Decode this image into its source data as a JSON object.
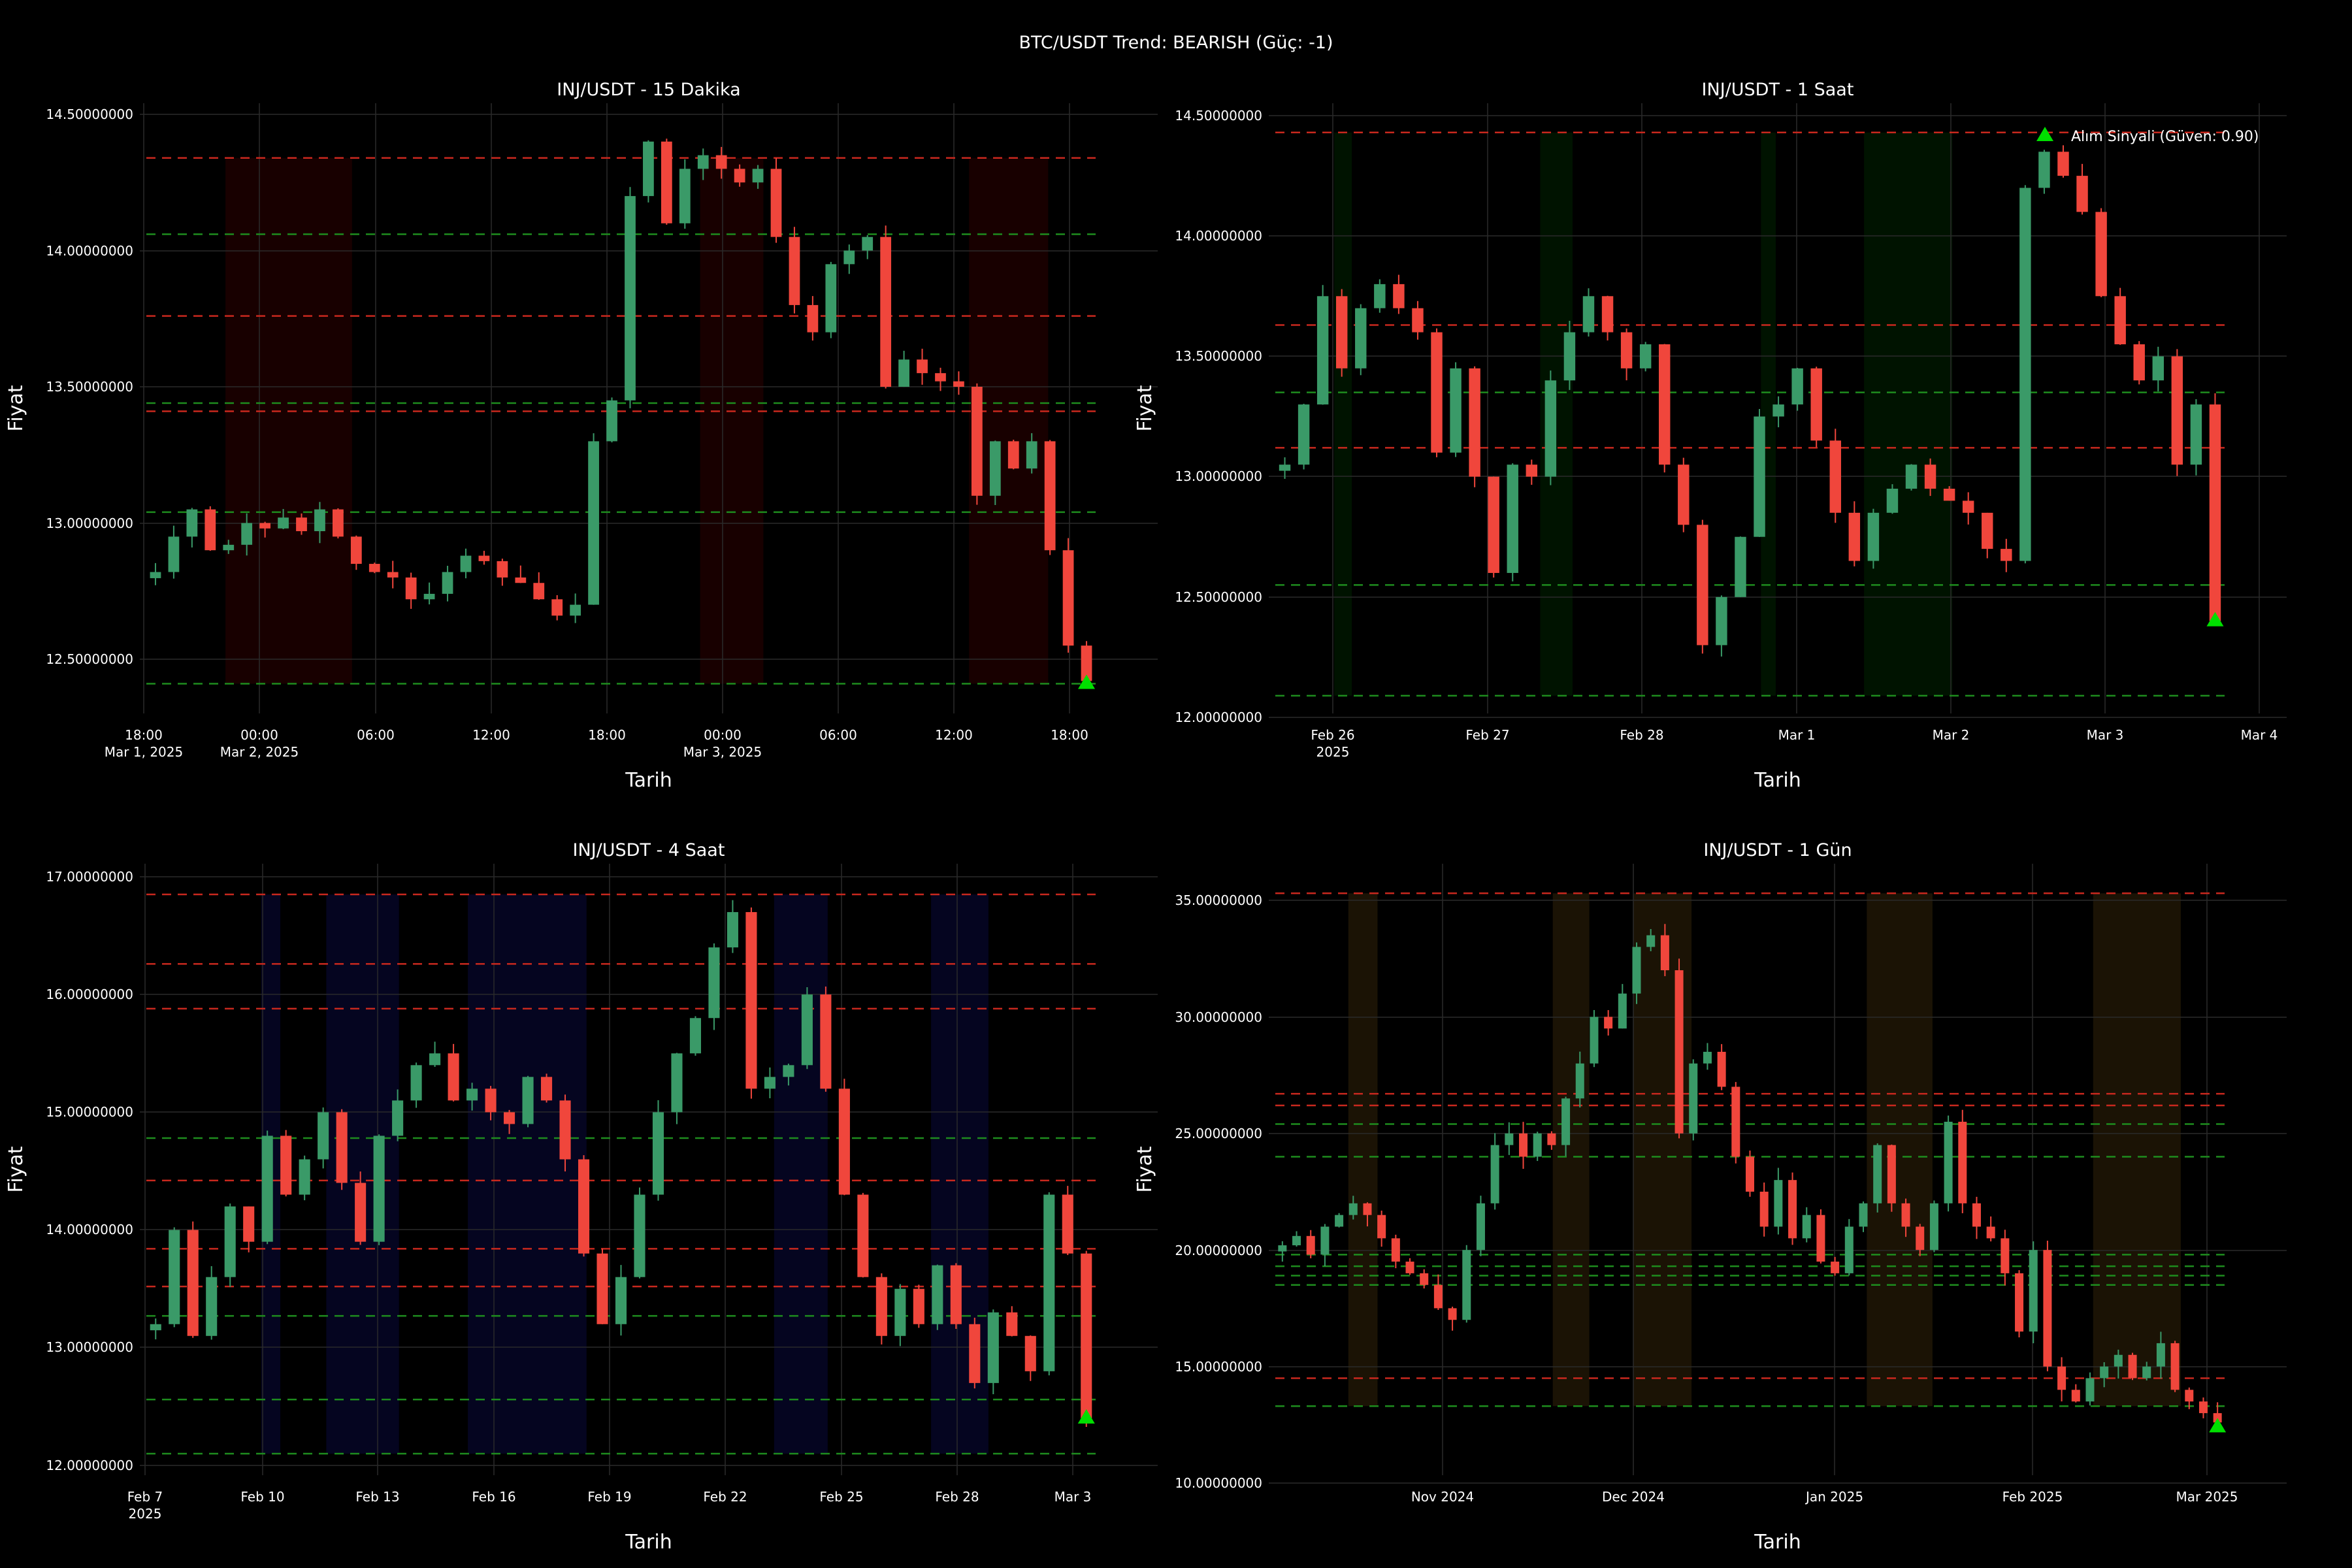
{
  "suptitle": "BTC/USDT Trend: BEARISH (Güç: -1)",
  "colors": {
    "background": "#000000",
    "grid": "#2a2a2a",
    "candle_up": "#3a9a68",
    "candle_down": "#f0463c",
    "resistance_line": "#c8281e",
    "support_line": "#1e8c1e",
    "buy_marker": "#00e000"
  },
  "chart_data": [
    {
      "type": "candlestick",
      "title": "INJ/USDT - 15 Dakika",
      "xlabel": "Tarih",
      "ylabel": "Fiyat",
      "ylim": [
        12.3,
        14.55
      ],
      "yticks": [
        "12.50000000",
        "13.00000000",
        "13.50000000",
        "14.00000000",
        "14.50000000"
      ],
      "xlim_hours": [
        -0.3,
        25.0
      ],
      "xticks": [
        {
          "label": "18:00",
          "sub": "Mar 1, 2025"
        },
        {
          "label": "00:00",
          "sub": "Mar 2, 2025"
        },
        {
          "label": "06:00",
          "sub": ""
        },
        {
          "label": "12:00",
          "sub": ""
        },
        {
          "label": "18:00",
          "sub": ""
        },
        {
          "label": "00:00",
          "sub": "Mar 3, 2025"
        },
        {
          "label": "06:00",
          "sub": ""
        },
        {
          "label": "12:00",
          "sub": ""
        },
        {
          "label": "18:00",
          "sub": ""
        }
      ],
      "grid": true,
      "closes": [
        12.82,
        12.95,
        13.05,
        12.9,
        12.92,
        13.0,
        12.98,
        13.02,
        12.97,
        13.05,
        12.95,
        12.85,
        12.82,
        12.8,
        12.72,
        12.74,
        12.82,
        12.88,
        12.86,
        12.8,
        12.78,
        12.72,
        12.66,
        12.7,
        13.3,
        13.45,
        14.2,
        14.4,
        14.1,
        14.3,
        14.35,
        14.3,
        14.25,
        14.3,
        14.05,
        13.8,
        13.7,
        13.95,
        14.0,
        14.05,
        13.5,
        13.6,
        13.55,
        13.52,
        13.5,
        13.1,
        13.3,
        13.2,
        13.3,
        12.9,
        12.55,
        12.42
      ],
      "resistance_levels": [
        14.34,
        13.76,
        13.41
      ],
      "support_levels": [
        14.06,
        13.44,
        13.04,
        12.41
      ],
      "highlight_zones": [
        [
          2.0,
          5.2
        ],
        [
          14.0,
          15.6
        ],
        [
          20.8,
          22.8
        ]
      ],
      "highlight_color": "rgba(110,0,0,0.22)",
      "signals": [
        {
          "type": "buy",
          "x_index": 51,
          "price": 12.41
        }
      ],
      "legend": null
    },
    {
      "type": "candlestick",
      "title": "INJ/USDT - 1 Saat",
      "xlabel": "Tarih",
      "ylabel": "Fiyat",
      "ylim": [
        12.0,
        14.55
      ],
      "yticks": [
        "12.00000000",
        "12.50000000",
        "13.00000000",
        "13.50000000",
        "14.00000000",
        "14.50000000"
      ],
      "xlim_days": [
        -0.3,
        6.15
      ],
      "xticks": [
        {
          "label": "Feb 26",
          "sub": "2025"
        },
        {
          "label": "Feb 27",
          "sub": ""
        },
        {
          "label": "Feb 28",
          "sub": ""
        },
        {
          "label": "Mar 1",
          "sub": ""
        },
        {
          "label": "Mar 2",
          "sub": ""
        },
        {
          "label": "Mar 3",
          "sub": ""
        },
        {
          "label": "Mar 4",
          "sub": ""
        }
      ],
      "grid": true,
      "closes": [
        13.05,
        13.3,
        13.75,
        13.45,
        13.7,
        13.8,
        13.7,
        13.6,
        13.1,
        13.45,
        13.0,
        12.6,
        13.05,
        13.0,
        13.4,
        13.6,
        13.75,
        13.6,
        13.45,
        13.55,
        13.05,
        12.8,
        12.3,
        12.5,
        12.75,
        13.25,
        13.3,
        13.45,
        13.15,
        12.85,
        12.65,
        12.85,
        12.95,
        13.05,
        12.95,
        12.9,
        12.85,
        12.7,
        12.65,
        14.2,
        14.35,
        14.25,
        14.1,
        13.75,
        13.55,
        13.4,
        13.5,
        13.05,
        13.3,
        12.4
      ],
      "resistance_levels": [
        14.43,
        13.63,
        13.12
      ],
      "support_levels": [
        13.35,
        12.55,
        12.09
      ],
      "highlight_zones": [
        [
          0.4,
          0.52
        ],
        [
          1.8,
          2.02
        ],
        [
          3.3,
          3.4
        ],
        [
          4.0,
          4.6
        ]
      ],
      "highlight_color": "rgba(0,70,0,0.28)",
      "signals": [
        {
          "type": "buy",
          "x_index": 49,
          "price": 12.4
        }
      ],
      "legend": {
        "label": "Alım Sinyali (Güven: 0.90)",
        "position": "upper right"
      }
    },
    {
      "type": "candlestick",
      "title": "INJ/USDT - 4 Saat",
      "xlabel": "Tarih",
      "ylabel": "Fiyat",
      "ylim": [
        11.95,
        17.15
      ],
      "yticks": [
        "12.00000000",
        "13.00000000",
        "14.00000000",
        "15.00000000",
        "16.00000000",
        "17.00000000"
      ],
      "xlim_days": [
        -0.3,
        24.5
      ],
      "xticks": [
        {
          "label": "Feb 7",
          "sub": "2025"
        },
        {
          "label": "Feb 10",
          "sub": ""
        },
        {
          "label": "Feb 13",
          "sub": ""
        },
        {
          "label": "Feb 16",
          "sub": ""
        },
        {
          "label": "Feb 19",
          "sub": ""
        },
        {
          "label": "Feb 22",
          "sub": ""
        },
        {
          "label": "Feb 25",
          "sub": ""
        },
        {
          "label": "Feb 28",
          "sub": ""
        },
        {
          "label": "Mar 3",
          "sub": ""
        }
      ],
      "grid": true,
      "closes": [
        13.2,
        14.0,
        13.1,
        13.6,
        14.2,
        13.9,
        14.8,
        14.3,
        14.6,
        15.0,
        14.4,
        13.9,
        14.8,
        15.1,
        15.4,
        15.5,
        15.1,
        15.2,
        15.0,
        14.9,
        15.3,
        15.1,
        14.6,
        13.8,
        13.2,
        13.6,
        14.3,
        15.0,
        15.5,
        15.8,
        16.4,
        16.7,
        15.2,
        15.3,
        15.4,
        16.0,
        15.2,
        14.3,
        13.6,
        13.1,
        13.5,
        13.2,
        13.7,
        13.2,
        12.7,
        13.3,
        13.1,
        12.8,
        14.3,
        13.8,
        12.4
      ],
      "resistance_levels": [
        16.85,
        16.26,
        15.88,
        14.42,
        13.84,
        13.52
      ],
      "support_levels": [
        14.78,
        13.27,
        12.56,
        12.1
      ],
      "highlight_zones": [
        [
          3.0,
          3.5
        ],
        [
          4.7,
          6.6
        ],
        [
          8.4,
          11.5
        ],
        [
          16.4,
          17.8
        ],
        [
          20.5,
          22.0
        ]
      ],
      "highlight_color": "rgba(10,10,70,0.45)",
      "signals": [
        {
          "type": "buy",
          "x_index": 50,
          "price": 12.4
        }
      ],
      "legend": null
    },
    {
      "type": "candlestick",
      "title": "INJ/USDT - 1 Gün",
      "xlabel": "Tarih",
      "ylabel": "Fiyat",
      "ylim": [
        9.6,
        36.0
      ],
      "yticks": [
        "10.00000000",
        "15.00000000",
        "20.00000000",
        "25.00000000",
        "30.00000000",
        "35.00000000"
      ],
      "xlim_days": [
        -2,
        128
      ],
      "xticks": [
        {
          "label": "Nov 2024",
          "sub": ""
        },
        {
          "label": "Dec 2024",
          "sub": ""
        },
        {
          "label": "Jan 2025",
          "sub": ""
        },
        {
          "label": "Feb 2025",
          "sub": ""
        },
        {
          "label": "Mar 2025",
          "sub": ""
        }
      ],
      "grid": true,
      "closes": [
        20.2,
        20.6,
        19.8,
        21.0,
        21.5,
        22.0,
        21.5,
        20.5,
        19.5,
        19.0,
        18.5,
        17.5,
        17.0,
        20.0,
        22.0,
        24.5,
        25.0,
        24.0,
        25.0,
        24.5,
        26.5,
        28.0,
        30.0,
        29.5,
        31.0,
        33.0,
        33.5,
        32.0,
        25.0,
        28.0,
        28.5,
        27.0,
        24.0,
        22.5,
        21.0,
        23.0,
        20.5,
        21.5,
        19.5,
        19.0,
        21.0,
        22.0,
        24.5,
        22.0,
        21.0,
        20.0,
        22.0,
        25.5,
        22.0,
        21.0,
        20.5,
        19.0,
        16.5,
        20.0,
        15.0,
        14.0,
        13.5,
        14.5,
        15.0,
        15.5,
        14.5,
        15.0,
        16.0,
        14.0,
        13.5,
        13.0,
        12.6
      ],
      "resistance_levels": [
        35.3,
        26.7,
        26.2,
        14.5
      ],
      "support_levels": [
        25.4,
        24.0,
        19.8,
        19.3,
        18.9,
        18.5,
        13.3
      ],
      "highlight_zones": [
        [
          10,
          14
        ],
        [
          38,
          43
        ],
        [
          49,
          57
        ],
        [
          81,
          90
        ],
        [
          112,
          124
        ]
      ],
      "highlight_color": "rgba(60,42,10,0.45)",
      "signals": [
        {
          "type": "buy",
          "x_index": 66,
          "price": 12.4
        }
      ],
      "legend": null
    }
  ]
}
